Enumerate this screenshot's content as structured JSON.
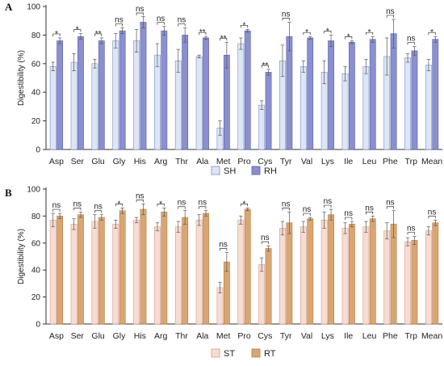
{
  "chart_data": [
    {
      "panel_label": "A",
      "type": "bar",
      "ylabel": "Digestibility (%)",
      "ylim": [
        0,
        100
      ],
      "yticks": [
        "0",
        "20",
        "40",
        "60",
        "80",
        "100"
      ],
      "categories": [
        "Asp",
        "Ser",
        "Glu",
        "Gly",
        "His",
        "Arg",
        "Thr",
        "Ala",
        "Met",
        "Pro",
        "Cys",
        "Tyr",
        "Val",
        "Lys",
        "Ile",
        "Leu",
        "Phe",
        "Trp",
        "Mean"
      ],
      "series": [
        {
          "name": "SH",
          "color": "#dde6f5",
          "edge": "#7e8fc4",
          "values": [
            58,
            61,
            60,
            76,
            76,
            66,
            62,
            65,
            15,
            74,
            31,
            62,
            58,
            54,
            53,
            58,
            65,
            64,
            59
          ],
          "errors": [
            3,
            6,
            3,
            5,
            8,
            8,
            8,
            1,
            5,
            4,
            3,
            11,
            4,
            8,
            5,
            5,
            13,
            3,
            4
          ]
        },
        {
          "name": "RH",
          "color": "#8a8fd0",
          "edge": "#5a5fa8",
          "values": [
            76,
            79,
            76,
            83,
            89,
            83,
            80,
            78,
            66,
            83,
            54,
            79,
            78,
            76,
            75,
            77,
            81,
            69,
            77
          ],
          "errors": [
            2,
            2,
            2,
            2,
            4,
            3,
            5,
            1,
            9,
            1,
            2,
            10,
            1,
            4,
            1,
            2,
            10,
            3,
            2
          ]
        }
      ],
      "significance": [
        "*",
        "*",
        "**",
        "ns",
        "ns",
        "ns",
        "ns",
        "**",
        "**",
        "*",
        "**",
        "ns",
        "*",
        "*",
        "*",
        "*",
        "ns",
        "ns",
        "*"
      ],
      "legend": "bottom-center"
    },
    {
      "panel_label": "B",
      "type": "bar",
      "ylabel": "Digestibility (%)",
      "ylim": [
        0,
        100
      ],
      "yticks": [
        "0",
        "20",
        "40",
        "60",
        "80",
        "100"
      ],
      "categories": [
        "Asp",
        "Ser",
        "Glu",
        "Gly",
        "His",
        "Arg",
        "Thr",
        "Ala",
        "Met",
        "Pro",
        "Cys",
        "Tyr",
        "Val",
        "Lys",
        "Ile",
        "Leu",
        "Phe",
        "Trp",
        "Mean"
      ],
      "series": [
        {
          "name": "ST",
          "color": "#f7dcd2",
          "edge": "#d49a86",
          "values": [
            77,
            74,
            76,
            74,
            77,
            72,
            72,
            77,
            27,
            77,
            44,
            71,
            72,
            77,
            71,
            72,
            69,
            61,
            69
          ],
          "errors": [
            5,
            4,
            5,
            3,
            2,
            3,
            4,
            4,
            4,
            3,
            5,
            5,
            4,
            6,
            4,
            4,
            6,
            3,
            3
          ]
        },
        {
          "name": "RT",
          "color": "#d9a673",
          "edge": "#b37a45",
          "values": [
            80,
            81,
            79,
            84,
            85,
            83,
            79,
            82,
            46,
            85,
            56,
            75,
            78,
            81,
            74,
            78,
            74,
            62,
            75
          ],
          "errors": [
            2,
            2,
            2,
            2,
            4,
            3,
            5,
            2,
            7,
            1,
            2,
            8,
            1,
            4,
            2,
            2,
            10,
            3,
            2
          ]
        }
      ],
      "significance": [
        "ns",
        "ns",
        "ns",
        "*",
        "ns",
        "*",
        "ns",
        "ns",
        "ns",
        "*",
        "ns",
        "ns",
        "ns",
        "ns",
        "ns",
        "ns",
        "ns",
        "ns",
        "ns"
      ],
      "legend": "bottom-center"
    }
  ]
}
